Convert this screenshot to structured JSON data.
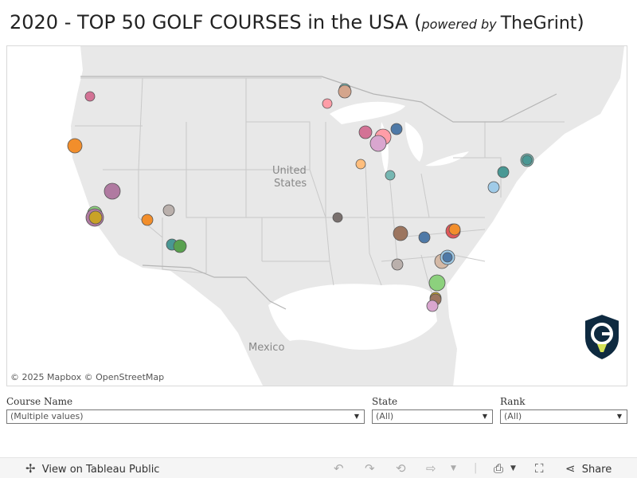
{
  "header": {
    "title_main": "2020 - TOP 50 GOLF COURSES in the USA",
    "title_open": " (",
    "powered_by": "powered by ",
    "brand": "TheGrint",
    "title_close": ")"
  },
  "map": {
    "labels": {
      "country_us": [
        "United",
        "States"
      ],
      "mexico": "Mexico"
    },
    "attribution": "© 2025 Mapbox  © OpenStreetMap"
  },
  "filters": [
    {
      "label": "Course Name",
      "value": "(Multiple values)"
    },
    {
      "label": "State",
      "value": "(All)"
    },
    {
      "label": "Rank",
      "value": "(All)"
    }
  ],
  "toolbar": {
    "view_label": "View on Tableau Public",
    "share_label": "Share"
  },
  "colors": {
    "map_land": "#e8e8e8",
    "map_water": "#ffffff",
    "marker_palette": [
      "#e15759",
      "#f28e2b",
      "#76b7b2",
      "#59a14f",
      "#4e79a7",
      "#b07aa1",
      "#9c755f",
      "#bab0ac",
      "#ff9da7",
      "#a0cbe8",
      "#d37295",
      "#8cd17d",
      "#499894"
    ]
  }
}
